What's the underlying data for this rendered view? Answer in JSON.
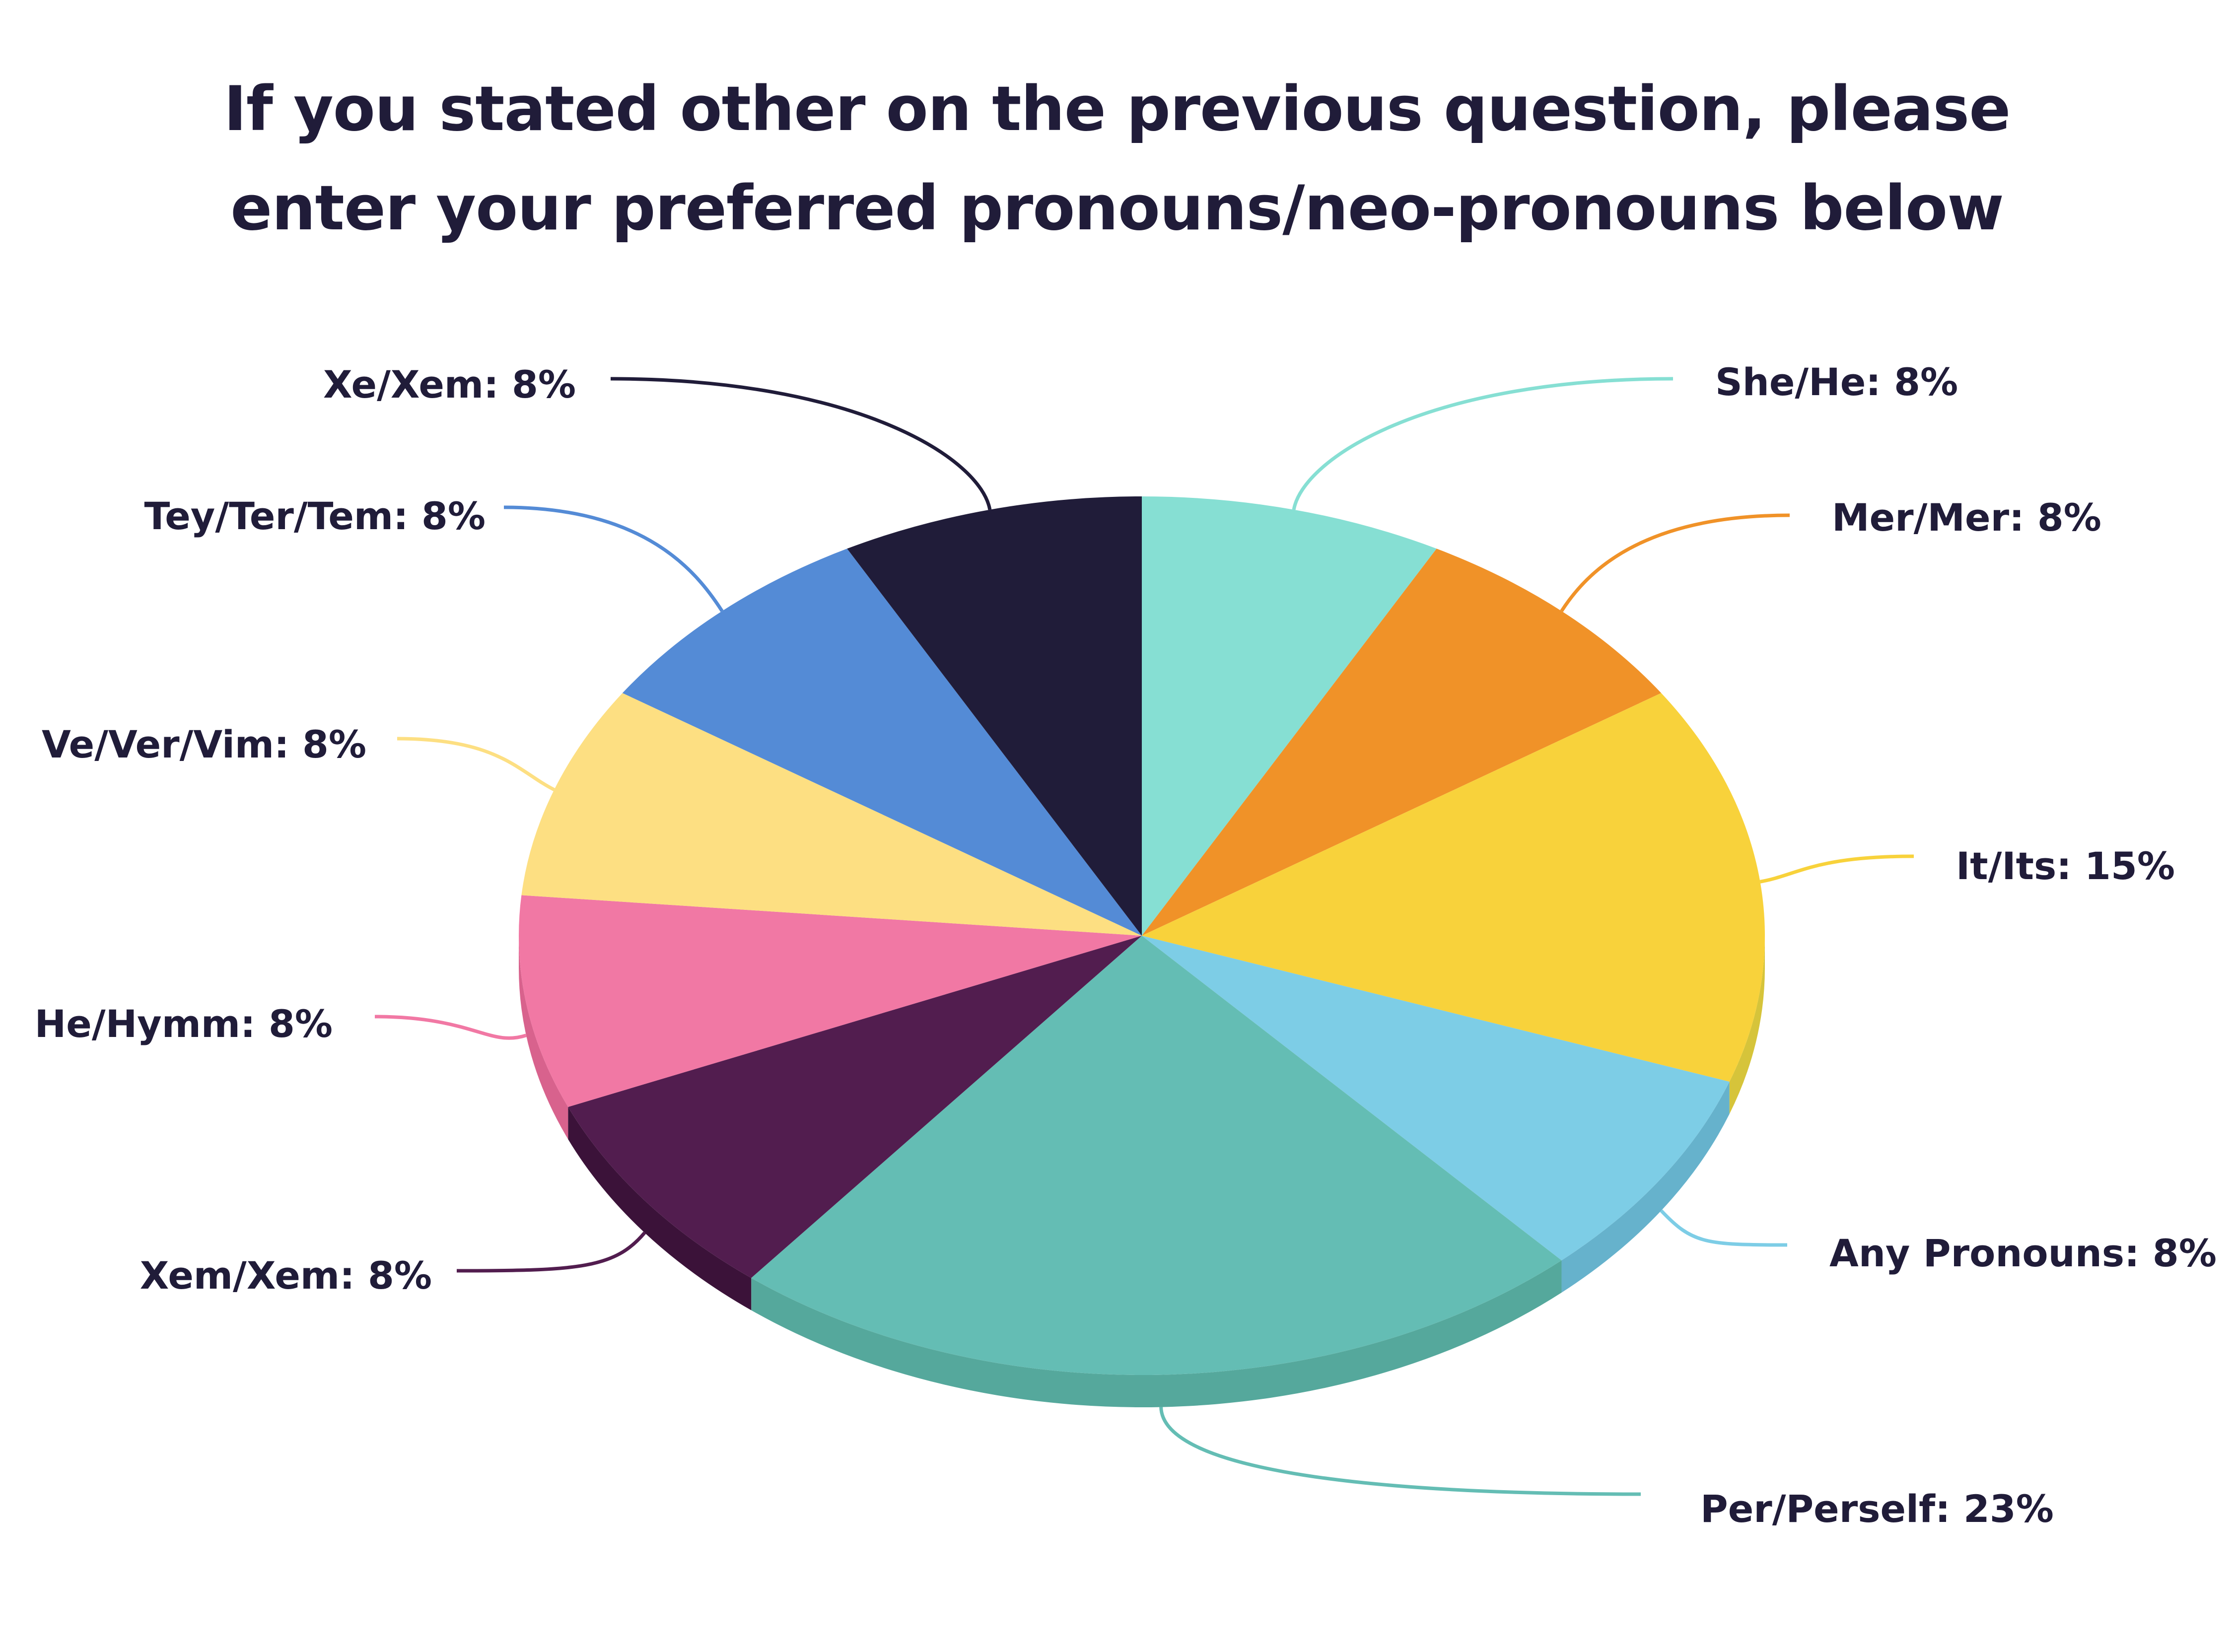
{
  "chart_data": {
    "type": "pie",
    "title_lines": [
      "If you stated other on the previous question, please",
      "enter your preferred pronouns/neo-pronouns below"
    ],
    "slices": [
      {
        "label": "She/He: 8%",
        "value": 8,
        "color": "#86dfd3",
        "side_color": "#6cc2b7"
      },
      {
        "label": "Mer/Mer: 8%",
        "value": 8,
        "color": "#f09228",
        "side_color": "#d27c1d"
      },
      {
        "label": "It/Its: 15%",
        "value": 15,
        "color": "#f8d23b",
        "side_color": "#d6c43a"
      },
      {
        "label": "Any Pronouns: 8%",
        "value": 8,
        "color": "#7dcde6",
        "side_color": "#66b2cc"
      },
      {
        "label": "Per/Perself: 23%",
        "value": 23,
        "color": "#64bdb4",
        "side_color": "#55a89c"
      },
      {
        "label": "Xem/Xem: 8%",
        "value": 8,
        "color": "#521d4f",
        "side_color": "#3b1239"
      },
      {
        "label": "He/Hymm: 8%",
        "value": 8,
        "color": "#f178a4",
        "side_color": "#d8628d"
      },
      {
        "label": "Ve/Ver/Vim: 8%",
        "value": 8,
        "color": "#fddf82",
        "side_color": "#e3c56a"
      },
      {
        "label": "Tey/Ter/Tem: 8%",
        "value": 8,
        "color": "#548bd6",
        "side_color": "#4374bb"
      },
      {
        "label": "Xe/Xem: 8%",
        "value": 8,
        "color": "#201c39",
        "side_color": "#161228"
      }
    ],
    "legend": "none"
  }
}
